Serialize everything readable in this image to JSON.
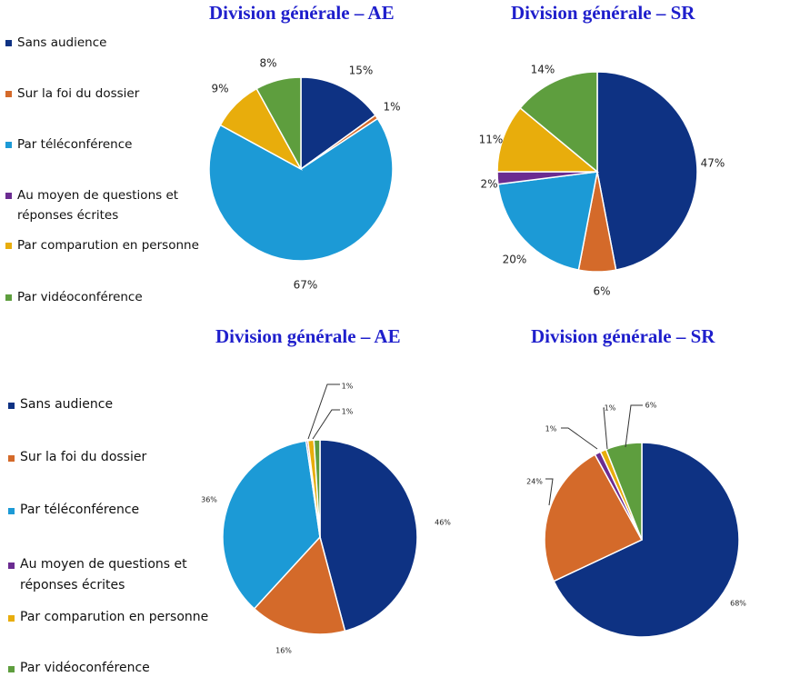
{
  "legend": [
    {
      "label": "Sans audience",
      "color": "#0e3283"
    },
    {
      "label": "Sur la foi du dossier",
      "color": "#d46a2a"
    },
    {
      "label": "Par téléconférence",
      "color": "#1c9ad6"
    },
    {
      "label": "Au moyen de questions et réponses écrites",
      "color": "#6b2c91"
    },
    {
      "label": "Par comparution en personne",
      "color": "#e8ad0c"
    },
    {
      "label": "Par vidéoconférence",
      "color": "#5e9e3e"
    }
  ],
  "chart_data": [
    {
      "type": "pie",
      "title": "Division générale – AE",
      "legend_position": "left",
      "labels": [
        "Sans audience",
        "Sur la foi du dossier",
        "Par téléconférence",
        "Au moyen de questions et réponses écrites",
        "Par comparution en personne",
        "Par vidéoconférence"
      ],
      "values": [
        15,
        0.7,
        67,
        0,
        9,
        8
      ],
      "display_labels": [
        "15%",
        "1%",
        "67%",
        "",
        "9%",
        "8%"
      ]
    },
    {
      "type": "pie",
      "title": "Division générale – SR",
      "labels": [
        "Sans audience",
        "Sur la foi du dossier",
        "Par téléconférence",
        "Au moyen de questions et réponses écrites",
        "Par comparution en personne",
        "Par vidéoconférence"
      ],
      "values": [
        47,
        6,
        20,
        2,
        11,
        14
      ],
      "display_labels": [
        "47%",
        "6%",
        "20%",
        "2%",
        "11%",
        "14%"
      ]
    },
    {
      "type": "pie",
      "title": "Division générale – AE",
      "legend_position": "left",
      "labels": [
        "Sans audience",
        "Sur la foi du dossier",
        "Par téléconférence",
        "Au moyen de questions et réponses écrites",
        "Par comparution en personne",
        "Par vidéoconférence"
      ],
      "values": [
        46,
        16,
        36,
        0.3,
        1,
        1
      ],
      "display_labels": [
        "46%",
        "16%",
        "36%",
        "",
        "1%",
        "1%"
      ]
    },
    {
      "type": "pie",
      "title": "Division générale – SR",
      "labels": [
        "Sans audience",
        "Sur la foi du dossier",
        "Par téléconférence",
        "Au moyen de questions et réponses écrites",
        "Par comparution en personne",
        "Par vidéoconférence"
      ],
      "values": [
        68,
        24,
        0,
        1,
        1,
        6
      ],
      "display_labels": [
        "68%",
        "24%",
        "",
        "1%",
        "1%",
        "6%"
      ]
    }
  ]
}
